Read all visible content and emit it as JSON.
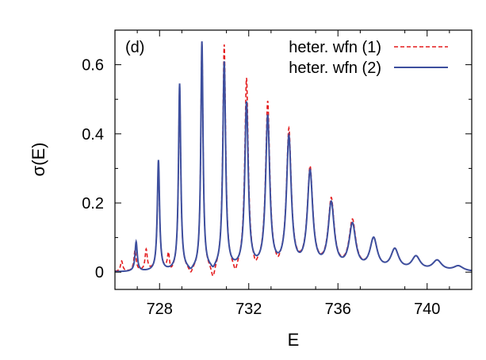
{
  "chart_data": {
    "type": "line",
    "panel_label": "(d)",
    "xlabel": "E",
    "ylabel": "σ(E)",
    "xlim": [
      726,
      742
    ],
    "ylim": [
      -0.05,
      0.7
    ],
    "x_ticks": [
      728,
      732,
      736,
      740
    ],
    "y_ticks": [
      0,
      0.2,
      0.4,
      0.6
    ],
    "x_tick_labels": [
      "728",
      "732",
      "736",
      "740"
    ],
    "y_tick_labels": [
      "0",
      "0.2",
      "0.4",
      "0.6"
    ],
    "grid": false,
    "legend_position": "top-right",
    "series": [
      {
        "name": "heter. wfn (1)",
        "color": "#e41a1c",
        "dash": "dashed",
        "peaks": [
          {
            "E": 726.3,
            "h": 0.03
          },
          {
            "E": 726.9,
            "h": 0.06
          },
          {
            "E": 727.4,
            "h": 0.06
          },
          {
            "E": 727.95,
            "h": 0.31
          },
          {
            "E": 728.4,
            "h": 0.05
          },
          {
            "E": 728.9,
            "h": 0.53
          },
          {
            "E": 729.9,
            "h": 0.66
          },
          {
            "E": 730.9,
            "h": 0.65
          },
          {
            "E": 731.9,
            "h": 0.55
          },
          {
            "E": 732.85,
            "h": 0.48
          },
          {
            "E": 733.8,
            "h": 0.4
          },
          {
            "E": 734.75,
            "h": 0.29
          },
          {
            "E": 735.7,
            "h": 0.2
          },
          {
            "E": 736.65,
            "h": 0.14
          },
          {
            "E": 737.6,
            "h": 0.09
          },
          {
            "E": 738.55,
            "h": 0.06
          },
          {
            "E": 739.5,
            "h": 0.04
          },
          {
            "E": 740.45,
            "h": 0.03
          },
          {
            "E": 741.4,
            "h": 0.015
          }
        ],
        "dips": [
          {
            "E": 730.4,
            "h": -0.04
          },
          {
            "E": 731.4,
            "h": -0.03
          },
          {
            "E": 732.3,
            "h": -0.02
          },
          {
            "E": 733.3,
            "h": -0.015
          },
          {
            "E": 729.4,
            "h": -0.02
          },
          {
            "E": 728.5,
            "h": -0.015
          }
        ]
      },
      {
        "name": "heter. wfn (2)",
        "color": "#3d4f9e",
        "dash": "solid",
        "peaks": [
          {
            "E": 726.95,
            "h": 0.085
          },
          {
            "E": 727.95,
            "h": 0.32
          },
          {
            "E": 728.9,
            "h": 0.54
          },
          {
            "E": 729.9,
            "h": 0.66
          },
          {
            "E": 730.9,
            "h": 0.6
          },
          {
            "E": 731.9,
            "h": 0.48
          },
          {
            "E": 732.85,
            "h": 0.44
          },
          {
            "E": 733.8,
            "h": 0.38
          },
          {
            "E": 734.75,
            "h": 0.28
          },
          {
            "E": 735.7,
            "h": 0.19
          },
          {
            "E": 736.65,
            "h": 0.13
          },
          {
            "E": 737.6,
            "h": 0.09
          },
          {
            "E": 738.55,
            "h": 0.06
          },
          {
            "E": 739.5,
            "h": 0.04
          },
          {
            "E": 740.45,
            "h": 0.03
          },
          {
            "E": 741.4,
            "h": 0.015
          }
        ],
        "dips": [
          {
            "E": 729.4,
            "h": -0.01
          },
          {
            "E": 730.4,
            "h": -0.012
          }
        ]
      }
    ]
  }
}
